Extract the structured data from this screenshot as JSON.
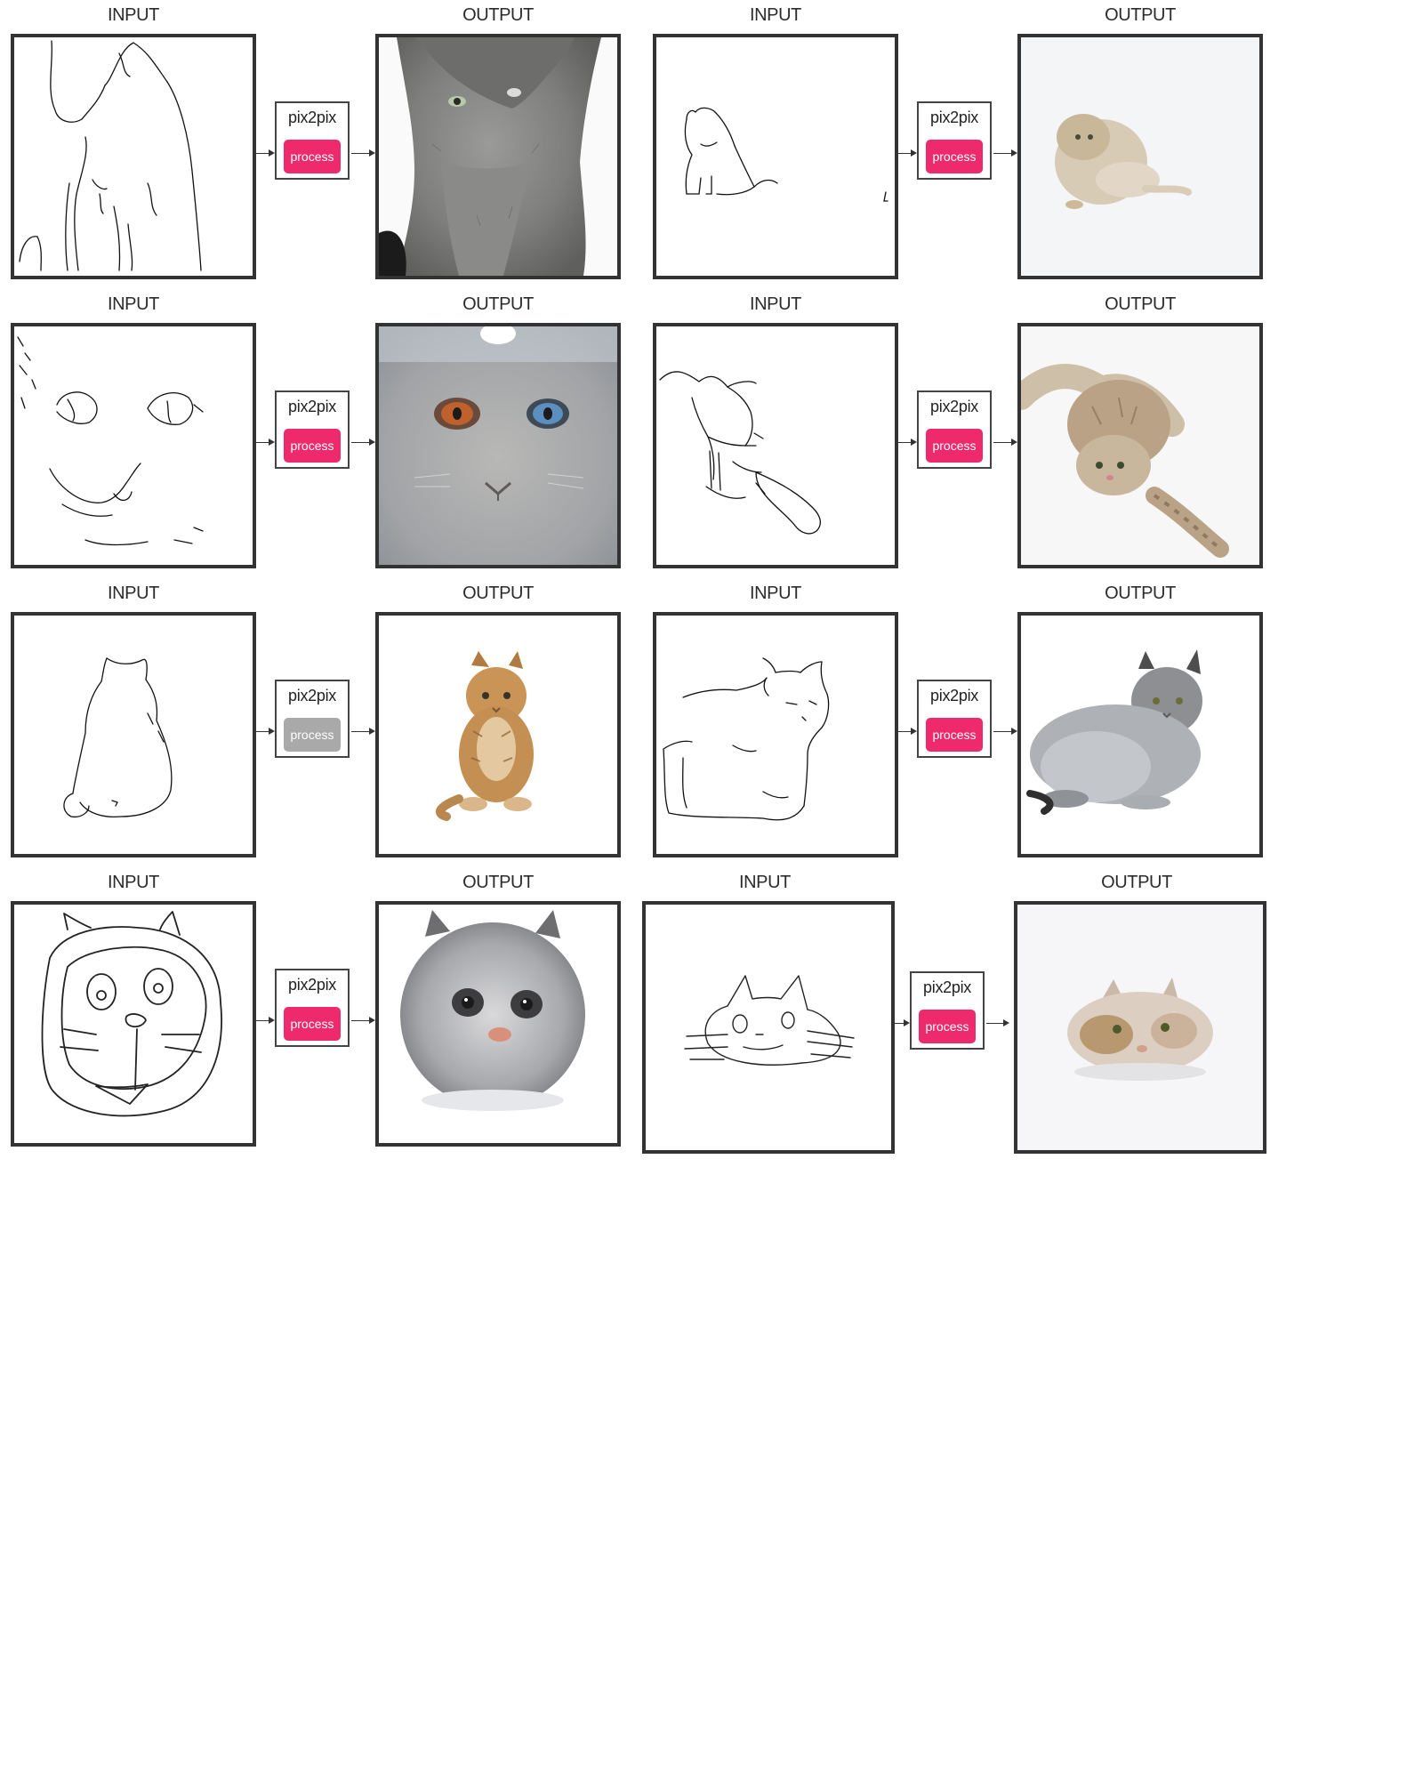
{
  "input_label": "INPUT",
  "output_label": "OUTPUT",
  "model_label": "pix2pix",
  "button_label": "process",
  "colors": {
    "button_active": "#ef2a6c",
    "button_disabled": "#a9a9a9",
    "frame_border": "#333333"
  },
  "panels": [
    {
      "id": "p1",
      "button_state": "active",
      "output": "gray-fluffy-cat-closeup"
    },
    {
      "id": "p2",
      "button_state": "active",
      "output": "small-fluffy-cat-on-white"
    },
    {
      "id": "p3",
      "button_state": "active",
      "output": "cat-face-heterochromia"
    },
    {
      "id": "p4",
      "button_state": "active",
      "output": "tabby-kitten-stretching"
    },
    {
      "id": "p5",
      "button_state": "disabled",
      "output": "orange-tabby-kitten-sitting"
    },
    {
      "id": "p6",
      "button_state": "active",
      "output": "gray-fluffy-cat-lying"
    },
    {
      "id": "p7",
      "button_state": "active",
      "output": "round-gray-cat-face"
    },
    {
      "id": "p8",
      "button_state": "active",
      "output": "blurry-cat-face"
    }
  ]
}
